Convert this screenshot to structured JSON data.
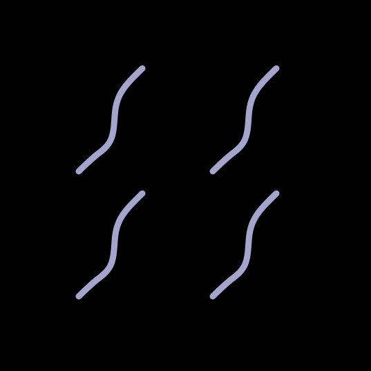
{
  "canvas": {
    "background": "#000000"
  },
  "pattern": {
    "shape": "s-curve-stroke",
    "stroke_color": "#A3A5CC",
    "rows": 2,
    "columns": 2
  }
}
